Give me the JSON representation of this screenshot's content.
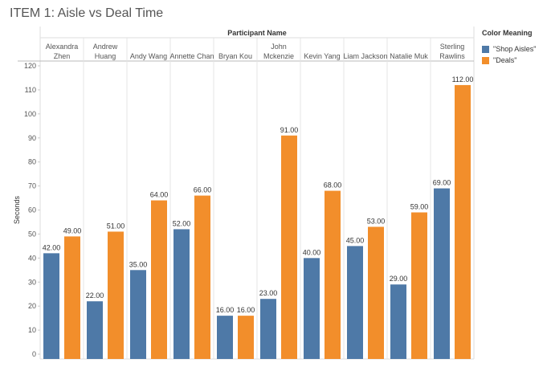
{
  "chart_data": {
    "type": "bar",
    "title": "ITEM 1: Aisle vs Deal Time",
    "column_header": "Participant Name",
    "ylabel": "Seconds",
    "ylim": [
      0,
      120
    ],
    "yticks": [
      0,
      10,
      20,
      30,
      40,
      50,
      60,
      70,
      80,
      90,
      100,
      110,
      120
    ],
    "categories": [
      [
        "Alexandra",
        "Zhen"
      ],
      [
        "Andrew",
        "Huang"
      ],
      [
        "Andy Wang"
      ],
      [
        "Annette Chan"
      ],
      [
        "Bryan Kou"
      ],
      [
        "John",
        "Mckenzie"
      ],
      [
        "Kevin Yang"
      ],
      [
        "Liam Jackson"
      ],
      [
        "Natalie Muk"
      ],
      [
        "Sterling",
        "Rawlins"
      ]
    ],
    "series": [
      {
        "name": "\"Shop Aisles\"",
        "color": "#4e79a7",
        "values": [
          42,
          22,
          35,
          52,
          16,
          23,
          40,
          45,
          29,
          69
        ]
      },
      {
        "name": "\"Deals\"",
        "color": "#f28e2b",
        "values": [
          49,
          51,
          64,
          66,
          16,
          91,
          68,
          53,
          59,
          112
        ]
      }
    ],
    "data_labels": true,
    "legend": {
      "title": "Color Meaning",
      "position": "right"
    },
    "grid": {
      "horizontal": false,
      "vertical_separators": true
    }
  }
}
